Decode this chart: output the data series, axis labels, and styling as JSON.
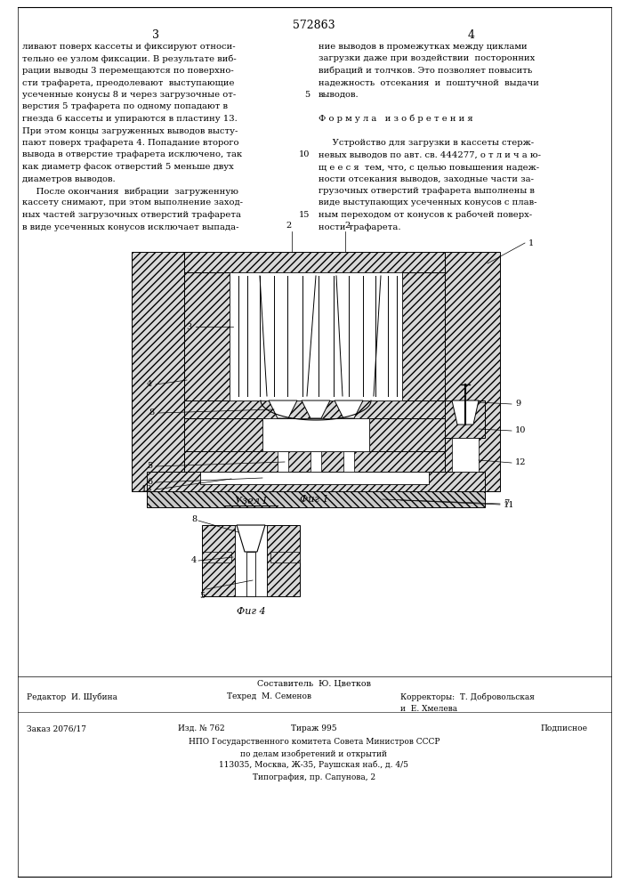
{
  "bg_color": "#ffffff",
  "page_width": 7.07,
  "page_height": 10.0,
  "patent_number": "572863",
  "col_left_num": "3",
  "col_right_num": "4",
  "left_col_text": [
    "ливают поверх кассеты и фиксируют относи-",
    "тельно ее узлом фиксации. В результате виб-",
    "рации выводы 3 перемещаются по поверхно-",
    "сти трафарета, преодолевают  выступающие",
    "усеченные конусы 8 и через загрузочные от-",
    "верстия 5 трафарета по одному попадают в",
    "гнезда 6 кассеты и упираются в пластину 13.",
    "При этом концы загруженных выводов высту-",
    "пают поверх трафарета 4. Попадание второго",
    "вывода в отверстие трафарета исключено, так",
    "как диаметр фасок отверстий 5 меньше двух",
    "диаметров выводов.",
    "     После окончания  вибрации  загруженную",
    "кассету снимают, при этом выполнение заход-",
    "ных частей загрузочных отверстий трафарета",
    "в виде усеченных конусов исключает выпада-"
  ],
  "right_col_text": [
    "ние выводов в промежутках между циклами",
    "загрузки даже при воздействии  посторонних",
    "вибраций и толчков. Это позволяет повысить",
    "надежность  отсекания  и  поштучной  выдачи",
    "выводов.",
    "",
    "Ф о р м у л а   и з о б р е т е н и я",
    "",
    "     Устройство для загрузки в кассеты стерж-",
    "невых выводов по авт. св. 444277, о т л и ч а ю-",
    "щ е е с я  тем, что, с целью повышения надеж-",
    "ности отсекания выводов, заходные части за-",
    "грузочных отверстий трафарета выполнены в",
    "виде выступающих усеченных конусов с плав-",
    "ным переходом от конусов к рабочей поверх-",
    "ности трафарета."
  ],
  "fig1_caption": "Фиг 1",
  "fig2_section_label": "Узел I",
  "fig2_caption": "Фиг 4",
  "compositor": "Составитель  Ю. Цветков",
  "footer_editor": "Редактор  И. Шубина",
  "footer_techred": "Техред  М. Семенов",
  "footer_correctors": "Корректоры:  Т. Добровольская",
  "footer_correctors2": "и  Е. Хмелева",
  "footer_order": "Заказ 2076/17",
  "footer_publ": "Изд. № 762",
  "footer_circ": "Тираж 995",
  "footer_subscr": "Подписное",
  "footer_npo": "НПО Государственного комитета Совета Министров СССР",
  "footer_affairs": "по делам изобретений и открытий",
  "footer_address": "113035, Москва, Ж-35, Раушская наб., д. 4/5",
  "footer_typo": "Типография, пр. Сапунова, 2"
}
